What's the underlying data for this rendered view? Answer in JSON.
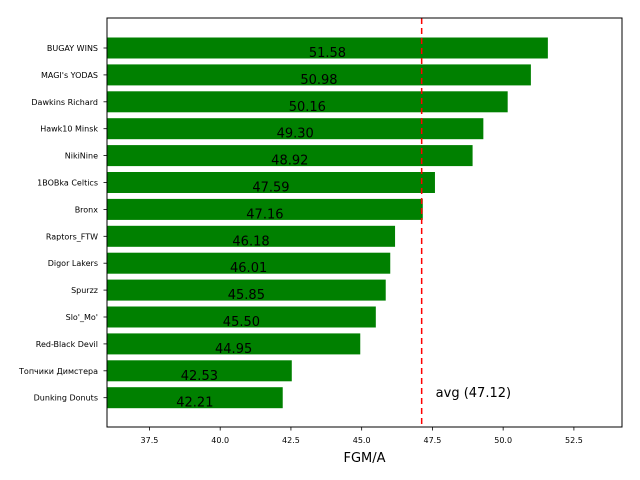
{
  "chart_data": {
    "type": "bar",
    "orientation": "horizontal",
    "title": "",
    "xlabel": "FGM/A",
    "ylabel": "",
    "xlim": [
      36.0,
      54.2
    ],
    "xticks": [
      37.5,
      40.0,
      42.5,
      45.0,
      47.5,
      50.0,
      52.5
    ],
    "xtick_labels": [
      "37.5",
      "40.0",
      "42.5",
      "45.0",
      "47.5",
      "50.0",
      "52.5"
    ],
    "categories": [
      "BUGAY WINS",
      "MAGI's YODAS",
      "Dawkins Richard",
      "Hawk10 Minsk",
      "NikiNine",
      "1BOBka Celtics",
      "Bronx",
      "Raptors_FTW",
      "Digor Lakers",
      "Spurzz",
      "Slo'_Mo'",
      "Red-Black Devil",
      "Топчики Димстера",
      "Dunking Donuts"
    ],
    "values": [
      51.58,
      50.98,
      50.16,
      49.3,
      48.92,
      47.59,
      47.16,
      46.18,
      46.01,
      45.85,
      45.5,
      44.95,
      42.53,
      42.21
    ],
    "value_labels": [
      "51.58",
      "50.98",
      "50.16",
      "49.30",
      "48.92",
      "47.59",
      "47.16",
      "46.18",
      "46.01",
      "45.85",
      "45.50",
      "44.95",
      "42.53",
      "42.21"
    ],
    "bar_color": "#008000",
    "average": {
      "value": 47.12,
      "label": "avg (47.12)",
      "color": "#ff0000",
      "style": "dashed"
    },
    "grid": false,
    "legend": "none"
  }
}
